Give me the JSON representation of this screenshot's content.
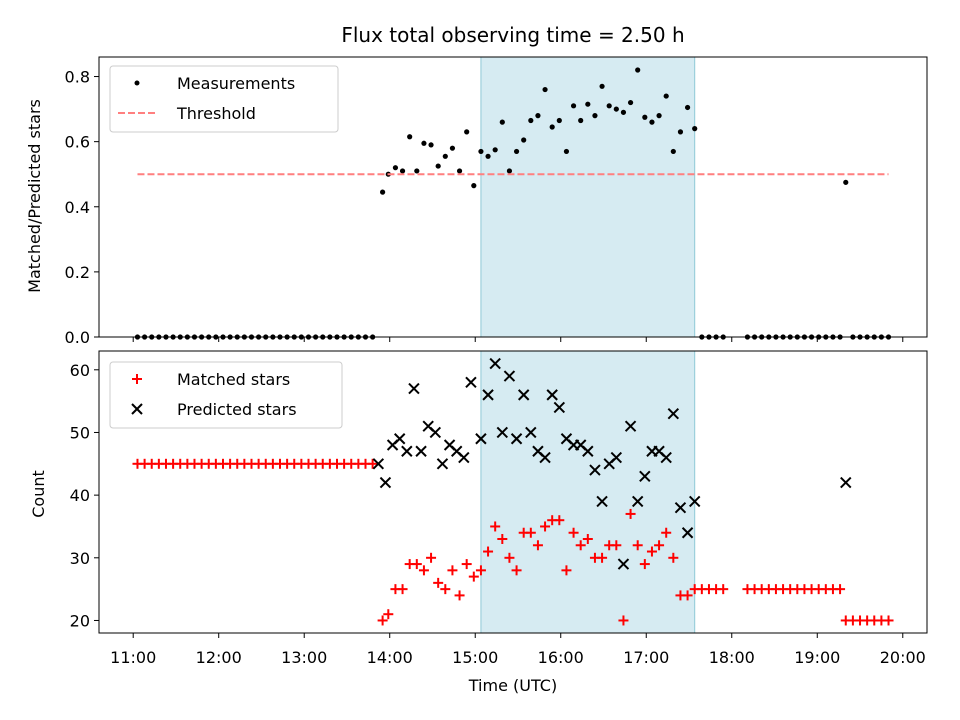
{
  "chart_data": [
    {
      "type": "scatter",
      "title": "Flux total observing time = 2.50 h",
      "ylabel": "Matched/Predicted stars",
      "xlabel": "",
      "xlim": [
        "10:36",
        "20:17"
      ],
      "ylim": [
        0,
        0.86
      ],
      "yticks": [
        "0.0",
        "0.2",
        "0.4",
        "0.6",
        "0.8"
      ],
      "legend_position": "top-left",
      "shaded_region": {
        "start": "15:04",
        "end": "17:34",
        "color": "#add8e6"
      },
      "series": [
        {
          "name": "Measurements",
          "kind": "dot",
          "color": "#000000",
          "points": [
            [
              "11:03",
              0
            ],
            [
              "11:08",
              0
            ],
            [
              "11:13",
              0
            ],
            [
              "11:18",
              0
            ],
            [
              "11:23",
              0
            ],
            [
              "11:28",
              0
            ],
            [
              "11:33",
              0
            ],
            [
              "11:38",
              0
            ],
            [
              "11:43",
              0
            ],
            [
              "11:48",
              0
            ],
            [
              "11:53",
              0
            ],
            [
              "11:58",
              0
            ],
            [
              "12:03",
              0
            ],
            [
              "12:08",
              0
            ],
            [
              "12:13",
              0
            ],
            [
              "12:18",
              0
            ],
            [
              "12:23",
              0
            ],
            [
              "12:28",
              0
            ],
            [
              "12:33",
              0
            ],
            [
              "12:38",
              0
            ],
            [
              "12:43",
              0
            ],
            [
              "12:48",
              0
            ],
            [
              "12:53",
              0
            ],
            [
              "12:58",
              0
            ],
            [
              "13:03",
              0
            ],
            [
              "13:08",
              0
            ],
            [
              "13:13",
              0
            ],
            [
              "13:18",
              0
            ],
            [
              "13:23",
              0
            ],
            [
              "13:28",
              0
            ],
            [
              "13:33",
              0
            ],
            [
              "13:38",
              0
            ],
            [
              "13:43",
              0
            ],
            [
              "13:48",
              0
            ],
            [
              "13:55",
              0.445
            ],
            [
              "13:59",
              0.5
            ],
            [
              "14:04",
              0.52
            ],
            [
              "14:09",
              0.51
            ],
            [
              "14:14",
              0.615
            ],
            [
              "14:19",
              0.51
            ],
            [
              "14:24",
              0.595
            ],
            [
              "14:29",
              0.59
            ],
            [
              "14:34",
              0.525
            ],
            [
              "14:39",
              0.555
            ],
            [
              "14:44",
              0.58
            ],
            [
              "14:49",
              0.51
            ],
            [
              "14:54",
              0.63
            ],
            [
              "14:59",
              0.465
            ],
            [
              "15:04",
              0.57
            ],
            [
              "15:09",
              0.555
            ],
            [
              "15:14",
              0.575
            ],
            [
              "15:19",
              0.66
            ],
            [
              "15:24",
              0.51
            ],
            [
              "15:29",
              0.57
            ],
            [
              "15:34",
              0.605
            ],
            [
              "15:39",
              0.665
            ],
            [
              "15:44",
              0.68
            ],
            [
              "15:49",
              0.76
            ],
            [
              "15:54",
              0.645
            ],
            [
              "15:59",
              0.665
            ],
            [
              "16:04",
              0.57
            ],
            [
              "16:09",
              0.71
            ],
            [
              "16:14",
              0.665
            ],
            [
              "16:19",
              0.715
            ],
            [
              "16:24",
              0.68
            ],
            [
              "16:29",
              0.77
            ],
            [
              "16:34",
              0.71
            ],
            [
              "16:39",
              0.7
            ],
            [
              "16:44",
              0.69
            ],
            [
              "16:49",
              0.72
            ],
            [
              "16:54",
              0.82
            ],
            [
              "16:59",
              0.675
            ],
            [
              "17:04",
              0.66
            ],
            [
              "17:09",
              0.68
            ],
            [
              "17:14",
              0.74
            ],
            [
              "17:19",
              0.57
            ],
            [
              "17:24",
              0.63
            ],
            [
              "17:29",
              0.705
            ],
            [
              "17:34",
              0.64
            ],
            [
              "17:39",
              0
            ],
            [
              "17:44",
              0
            ],
            [
              "17:49",
              0
            ],
            [
              "17:54",
              0
            ],
            [
              "18:11",
              0
            ],
            [
              "18:16",
              0
            ],
            [
              "18:21",
              0
            ],
            [
              "18:26",
              0
            ],
            [
              "18:31",
              0
            ],
            [
              "18:36",
              0
            ],
            [
              "18:41",
              0
            ],
            [
              "18:46",
              0
            ],
            [
              "18:51",
              0
            ],
            [
              "18:56",
              0
            ],
            [
              "19:01",
              0
            ],
            [
              "19:06",
              0
            ],
            [
              "19:11",
              0
            ],
            [
              "19:16",
              0
            ],
            [
              "19:20",
              0.475
            ],
            [
              "19:25",
              0
            ],
            [
              "19:30",
              0
            ],
            [
              "19:35",
              0
            ],
            [
              "19:40",
              0
            ],
            [
              "19:45",
              0
            ],
            [
              "19:50",
              0
            ]
          ]
        },
        {
          "name": "Threshold",
          "kind": "dashed-line",
          "color": "#ff7f7f",
          "points": [
            [
              "11:03",
              0.5
            ],
            [
              "19:50",
              0.5
            ]
          ]
        }
      ]
    },
    {
      "type": "scatter",
      "title": "",
      "ylabel": "Count",
      "xlabel": "Time (UTC)",
      "xlim": [
        "10:36",
        "20:17"
      ],
      "ylim": [
        18,
        63
      ],
      "yticks": [
        "20",
        "30",
        "40",
        "50",
        "60"
      ],
      "xticks": [
        "11:00",
        "12:00",
        "13:00",
        "14:00",
        "15:00",
        "16:00",
        "17:00",
        "18:00",
        "19:00",
        "20:00"
      ],
      "legend_position": "top-left",
      "shaded_region": {
        "start": "15:04",
        "end": "17:34",
        "color": "#add8e6"
      },
      "series": [
        {
          "name": "Matched stars",
          "kind": "plus",
          "color": "#ff0000",
          "points": [
            [
              "11:03",
              45
            ],
            [
              "11:08",
              45
            ],
            [
              "11:13",
              45
            ],
            [
              "11:18",
              45
            ],
            [
              "11:23",
              45
            ],
            [
              "11:28",
              45
            ],
            [
              "11:33",
              45
            ],
            [
              "11:38",
              45
            ],
            [
              "11:43",
              45
            ],
            [
              "11:48",
              45
            ],
            [
              "11:53",
              45
            ],
            [
              "11:58",
              45
            ],
            [
              "12:03",
              45
            ],
            [
              "12:08",
              45
            ],
            [
              "12:13",
              45
            ],
            [
              "12:18",
              45
            ],
            [
              "12:23",
              45
            ],
            [
              "12:28",
              45
            ],
            [
              "12:33",
              45
            ],
            [
              "12:38",
              45
            ],
            [
              "12:43",
              45
            ],
            [
              "12:48",
              45
            ],
            [
              "12:53",
              45
            ],
            [
              "12:58",
              45
            ],
            [
              "13:03",
              45
            ],
            [
              "13:08",
              45
            ],
            [
              "13:13",
              45
            ],
            [
              "13:18",
              45
            ],
            [
              "13:23",
              45
            ],
            [
              "13:28",
              45
            ],
            [
              "13:33",
              45
            ],
            [
              "13:38",
              45
            ],
            [
              "13:43",
              45
            ],
            [
              "13:48",
              45
            ],
            [
              "13:55",
              20
            ],
            [
              "13:59",
              21
            ],
            [
              "14:04",
              25
            ],
            [
              "14:09",
              25
            ],
            [
              "14:14",
              29
            ],
            [
              "14:19",
              29
            ],
            [
              "14:24",
              28
            ],
            [
              "14:29",
              30
            ],
            [
              "14:34",
              26
            ],
            [
              "14:39",
              25
            ],
            [
              "14:44",
              28
            ],
            [
              "14:49",
              24
            ],
            [
              "14:54",
              29
            ],
            [
              "14:59",
              27
            ],
            [
              "15:04",
              28
            ],
            [
              "15:09",
              31
            ],
            [
              "15:14",
              35
            ],
            [
              "15:19",
              33
            ],
            [
              "15:24",
              30
            ],
            [
              "15:29",
              28
            ],
            [
              "15:34",
              34
            ],
            [
              "15:39",
              34
            ],
            [
              "15:44",
              32
            ],
            [
              "15:49",
              35
            ],
            [
              "15:54",
              36
            ],
            [
              "15:59",
              36
            ],
            [
              "16:04",
              28
            ],
            [
              "16:09",
              34
            ],
            [
              "16:14",
              32
            ],
            [
              "16:19",
              33
            ],
            [
              "16:24",
              30
            ],
            [
              "16:29",
              30
            ],
            [
              "16:34",
              32
            ],
            [
              "16:39",
              32
            ],
            [
              "16:44",
              20
            ],
            [
              "16:49",
              37
            ],
            [
              "16:54",
              32
            ],
            [
              "16:59",
              29
            ],
            [
              "17:04",
              31
            ],
            [
              "17:09",
              32
            ],
            [
              "17:14",
              34
            ],
            [
              "17:19",
              30
            ],
            [
              "17:24",
              24
            ],
            [
              "17:29",
              24
            ],
            [
              "17:34",
              25
            ],
            [
              "17:39",
              25
            ],
            [
              "17:44",
              25
            ],
            [
              "17:49",
              25
            ],
            [
              "17:54",
              25
            ],
            [
              "18:11",
              25
            ],
            [
              "18:16",
              25
            ],
            [
              "18:21",
              25
            ],
            [
              "18:26",
              25
            ],
            [
              "18:31",
              25
            ],
            [
              "18:36",
              25
            ],
            [
              "18:41",
              25
            ],
            [
              "18:46",
              25
            ],
            [
              "18:51",
              25
            ],
            [
              "18:56",
              25
            ],
            [
              "19:01",
              25
            ],
            [
              "19:06",
              25
            ],
            [
              "19:11",
              25
            ],
            [
              "19:16",
              25
            ],
            [
              "19:20",
              20
            ],
            [
              "19:25",
              20
            ],
            [
              "19:30",
              20
            ],
            [
              "19:35",
              20
            ],
            [
              "19:40",
              20
            ],
            [
              "19:45",
              20
            ],
            [
              "19:50",
              20
            ]
          ]
        },
        {
          "name": "Predicted stars",
          "kind": "x",
          "color": "#000000",
          "points": [
            [
              "13:52",
              45
            ],
            [
              "13:57",
              42
            ],
            [
              "14:02",
              48
            ],
            [
              "14:07",
              49
            ],
            [
              "14:12",
              47
            ],
            [
              "14:17",
              57
            ],
            [
              "14:22",
              47
            ],
            [
              "14:27",
              51
            ],
            [
              "14:32",
              50
            ],
            [
              "14:37",
              45
            ],
            [
              "14:42",
              48
            ],
            [
              "14:47",
              47
            ],
            [
              "14:52",
              46
            ],
            [
              "14:57",
              58
            ],
            [
              "15:04",
              49
            ],
            [
              "15:09",
              56
            ],
            [
              "15:14",
              61
            ],
            [
              "15:19",
              50
            ],
            [
              "15:24",
              59
            ],
            [
              "15:29",
              49
            ],
            [
              "15:34",
              56
            ],
            [
              "15:39",
              50
            ],
            [
              "15:44",
              47
            ],
            [
              "15:49",
              46
            ],
            [
              "15:54",
              56
            ],
            [
              "15:59",
              54
            ],
            [
              "16:04",
              49
            ],
            [
              "16:09",
              48
            ],
            [
              "16:14",
              48
            ],
            [
              "16:19",
              47
            ],
            [
              "16:24",
              44
            ],
            [
              "16:29",
              39
            ],
            [
              "16:34",
              45
            ],
            [
              "16:39",
              46
            ],
            [
              "16:44",
              29
            ],
            [
              "16:49",
              51
            ],
            [
              "16:54",
              39
            ],
            [
              "16:59",
              43
            ],
            [
              "17:04",
              47
            ],
            [
              "17:09",
              47
            ],
            [
              "17:14",
              46
            ],
            [
              "17:19",
              53
            ],
            [
              "17:24",
              38
            ],
            [
              "17:29",
              34
            ],
            [
              "17:34",
              39
            ],
            [
              "19:20",
              42
            ]
          ]
        }
      ]
    }
  ]
}
